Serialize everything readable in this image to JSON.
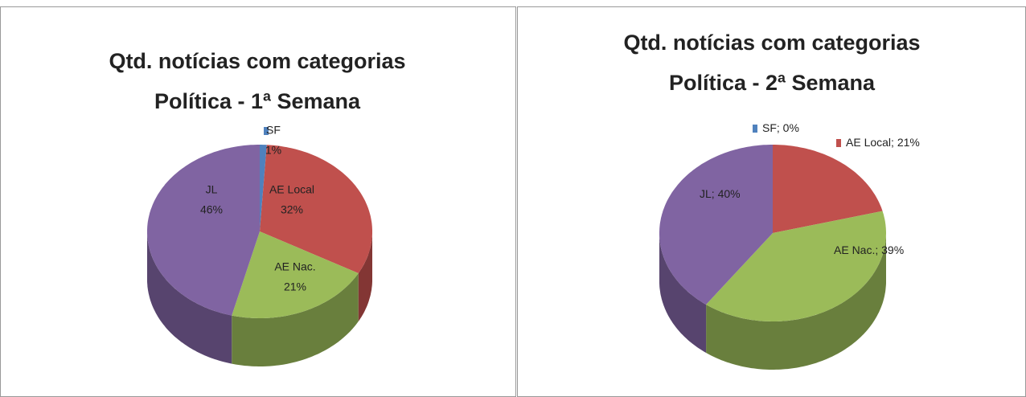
{
  "chart_data": [
    {
      "type": "pie3d",
      "title": [
        "Qtd. notícias com categorias",
        "Política - 1ª Semana"
      ],
      "categories": [
        "SF",
        "AE Local",
        "AE Nac.",
        "JL"
      ],
      "values": [
        1,
        32,
        21,
        46
      ],
      "value_labels": [
        "1%",
        "32%",
        "21%",
        "46%"
      ],
      "colors": [
        "#4f81bd",
        "#c0504d",
        "#9bbb59",
        "#8064a2"
      ]
    },
    {
      "type": "pie3d",
      "title": [
        "Qtd. notícias com categorias",
        "Política - 2ª Semana"
      ],
      "categories": [
        "SF",
        "AE Local",
        "AE Nac.",
        "JL"
      ],
      "values": [
        0,
        21,
        39,
        40
      ],
      "value_labels": [
        "0%",
        "21%",
        "39%",
        "40%"
      ],
      "label_separator": "; ",
      "colors": [
        "#4f81bd",
        "#c0504d",
        "#9bbb59",
        "#8064a2"
      ]
    }
  ]
}
